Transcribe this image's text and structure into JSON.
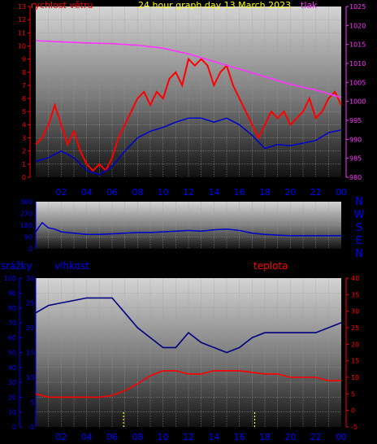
{
  "header": {
    "wind_label": "rychlost větru",
    "graph_title": "24 hour graph day   13 March 2023",
    "pressure_label": "tlak"
  },
  "colors": {
    "wind": "#ff0000",
    "wind_avg": "#0000cc",
    "pressure": "#ff33ff",
    "direction": "#0000cc",
    "humidity": "#000080",
    "temperature": "#ff0000",
    "rain": "#ffff00",
    "axis_red": "#ff0000",
    "axis_blue": "#0000aa",
    "axis_magenta": "#ff33ff"
  },
  "chart_data": [
    {
      "type": "line",
      "x_ticks": [
        "02",
        "04",
        "06",
        "08",
        "10",
        "12",
        "14",
        "16",
        "18",
        "20",
        "22",
        "00"
      ],
      "y_left": {
        "label": "rychlost větru",
        "range": [
          0,
          13
        ],
        "ticks": [
          0,
          1,
          2,
          3,
          4,
          5,
          6,
          7,
          8,
          9,
          10,
          11,
          12,
          13
        ]
      },
      "y_right": {
        "label": "tlak",
        "range": [
          980,
          1025
        ],
        "ticks": [
          980,
          985,
          990,
          995,
          1000,
          1005,
          1010,
          1015,
          1020,
          1025
        ]
      },
      "series": [
        {
          "name": "rychlost větru",
          "axis": "left",
          "x": [
            0,
            0.5,
            1,
            1.5,
            2,
            2.5,
            3,
            3.5,
            4,
            4.5,
            5,
            5.5,
            6,
            6.5,
            7,
            7.5,
            8,
            8.5,
            9,
            9.5,
            10,
            10.5,
            11,
            11.5,
            12,
            12.5,
            13,
            13.5,
            14,
            14.5,
            15,
            15.5,
            16,
            16.5,
            17,
            17.5,
            18,
            18.5,
            19,
            19.5,
            20,
            20.5,
            21,
            21.5,
            22,
            22.5,
            23,
            23.5,
            24
          ],
          "values": [
            2.5,
            3,
            4,
            5.5,
            4,
            2.5,
            3.5,
            2,
            1,
            0.5,
            1,
            0.5,
            1.5,
            3,
            4,
            5,
            6,
            6.5,
            5.5,
            6.5,
            6,
            7.5,
            8,
            7,
            9,
            8.5,
            9,
            8.5,
            7,
            8,
            8.5,
            7,
            6,
            5,
            4,
            3,
            4,
            5,
            4.5,
            5,
            4,
            4.5,
            5,
            6,
            4.5,
            5,
            6,
            6.5,
            5.5
          ]
        },
        {
          "name": "wind_avg",
          "axis": "left",
          "x": [
            0,
            1,
            2,
            3,
            4,
            5,
            6,
            7,
            8,
            9,
            10,
            11,
            12,
            13,
            14,
            15,
            16,
            17,
            18,
            19,
            20,
            21,
            22,
            23,
            24
          ],
          "values": [
            1.2,
            1.5,
            2,
            1.5,
            0.5,
            0.2,
            0.8,
            2,
            3,
            3.5,
            3.8,
            4.2,
            4.5,
            4.5,
            4.2,
            4.5,
            4,
            3.2,
            2.2,
            2.5,
            2.4,
            2.6,
            2.8,
            3.4,
            3.6
          ]
        },
        {
          "name": "tlak",
          "axis": "right",
          "x": [
            0,
            2,
            4,
            6,
            8,
            10,
            12,
            14,
            16,
            18,
            20,
            22,
            24
          ],
          "values": [
            1016,
            1015.7,
            1015.4,
            1015.2,
            1014.8,
            1014,
            1012.5,
            1010.5,
            1008.5,
            1006.5,
            1004.5,
            1003,
            1001
          ]
        }
      ]
    },
    {
      "type": "line",
      "x_ticks": [],
      "y_left": {
        "range": [
          0,
          360
        ],
        "ticks": [
          0,
          90,
          180,
          270,
          360
        ]
      },
      "y_right_labels": [
        "N",
        "W",
        "S",
        "E",
        "N"
      ],
      "series": [
        {
          "name": "direction",
          "x": [
            0,
            0.5,
            1,
            1.5,
            2,
            3,
            4,
            5,
            6,
            7,
            8,
            9,
            10,
            11,
            12,
            13,
            14,
            15,
            16,
            17,
            18,
            19,
            20,
            21,
            22,
            23,
            24
          ],
          "values": [
            130,
            200,
            160,
            150,
            130,
            120,
            110,
            110,
            115,
            120,
            125,
            125,
            130,
            135,
            140,
            135,
            145,
            150,
            140,
            120,
            110,
            105,
            100,
            100,
            100,
            100,
            100
          ]
        }
      ]
    },
    {
      "type": "line",
      "x_ticks": [
        "02",
        "04",
        "06",
        "08",
        "10",
        "12",
        "14",
        "16",
        "18",
        "20",
        "22",
        "00"
      ],
      "y_left_outer": {
        "label": "srážky",
        "range": [
          0,
          100
        ],
        "ticks": [
          0,
          10,
          20,
          30,
          40,
          50,
          60,
          70,
          80,
          90,
          100
        ]
      },
      "y_left_inner": {
        "label": "vlhkost",
        "range": [
          0,
          30
        ],
        "ticks": [
          0,
          5,
          10,
          15,
          20,
          25,
          30
        ]
      },
      "y_right": {
        "label": "teplota",
        "range": [
          -5,
          40
        ],
        "ticks": [
          -5,
          0,
          5,
          10,
          15,
          20,
          25,
          30,
          35,
          40
        ]
      },
      "series": [
        {
          "name": "vlhkost",
          "axis": "humidity",
          "x": [
            0,
            1,
            2,
            3,
            4,
            5,
            6,
            7,
            8,
            9,
            10,
            11,
            12,
            13,
            14,
            15,
            16,
            17,
            18,
            19,
            20,
            21,
            22,
            23,
            24
          ],
          "values": [
            23,
            24.5,
            25,
            25.5,
            26,
            26,
            26,
            23,
            20,
            18,
            16,
            16,
            19,
            17,
            16,
            15,
            16,
            18,
            19,
            19,
            19,
            19,
            19,
            20,
            21
          ]
        },
        {
          "name": "teplota",
          "axis": "right",
          "x": [
            0,
            1,
            2,
            3,
            4,
            5,
            6,
            7,
            8,
            9,
            10,
            11,
            12,
            13,
            14,
            15,
            16,
            17,
            18,
            19,
            20,
            21,
            22,
            23,
            24
          ],
          "values": [
            5,
            4,
            4,
            4,
            4,
            4,
            4.5,
            6,
            8,
            10.5,
            12,
            12,
            11,
            11,
            12,
            12,
            12,
            11.5,
            11,
            11,
            10,
            10,
            10,
            9,
            9
          ]
        },
        {
          "name": "srážky",
          "axis": "rain",
          "x": [
            6.9,
            17.2
          ],
          "values": [
            10,
            10
          ]
        }
      ]
    }
  ]
}
